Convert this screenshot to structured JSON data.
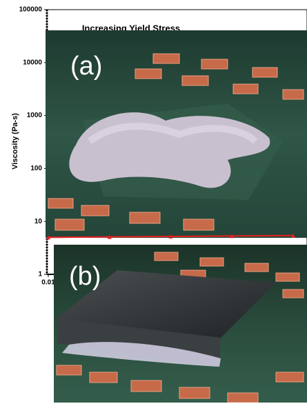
{
  "chart_data": {
    "type": "line",
    "title": "Increasing Yield Stress",
    "y_label": "Viscosity (Pa-s)",
    "log_y": true,
    "log_x": true,
    "ylim": [
      1,
      100000
    ],
    "yticks": [
      1,
      10,
      100,
      1000,
      10000,
      100000
    ],
    "xlim": [
      0.01,
      100
    ],
    "xticks": [
      0.01
    ],
    "x": [
      0.01,
      0.1,
      1,
      10,
      100
    ],
    "series": [
      {
        "color": "#e82020",
        "values": [
          5,
          5.1,
          5.2,
          5.3,
          5.4
        ]
      }
    ]
  },
  "panels": [
    {
      "label": "(a)"
    },
    {
      "label": "(b)"
    }
  ]
}
